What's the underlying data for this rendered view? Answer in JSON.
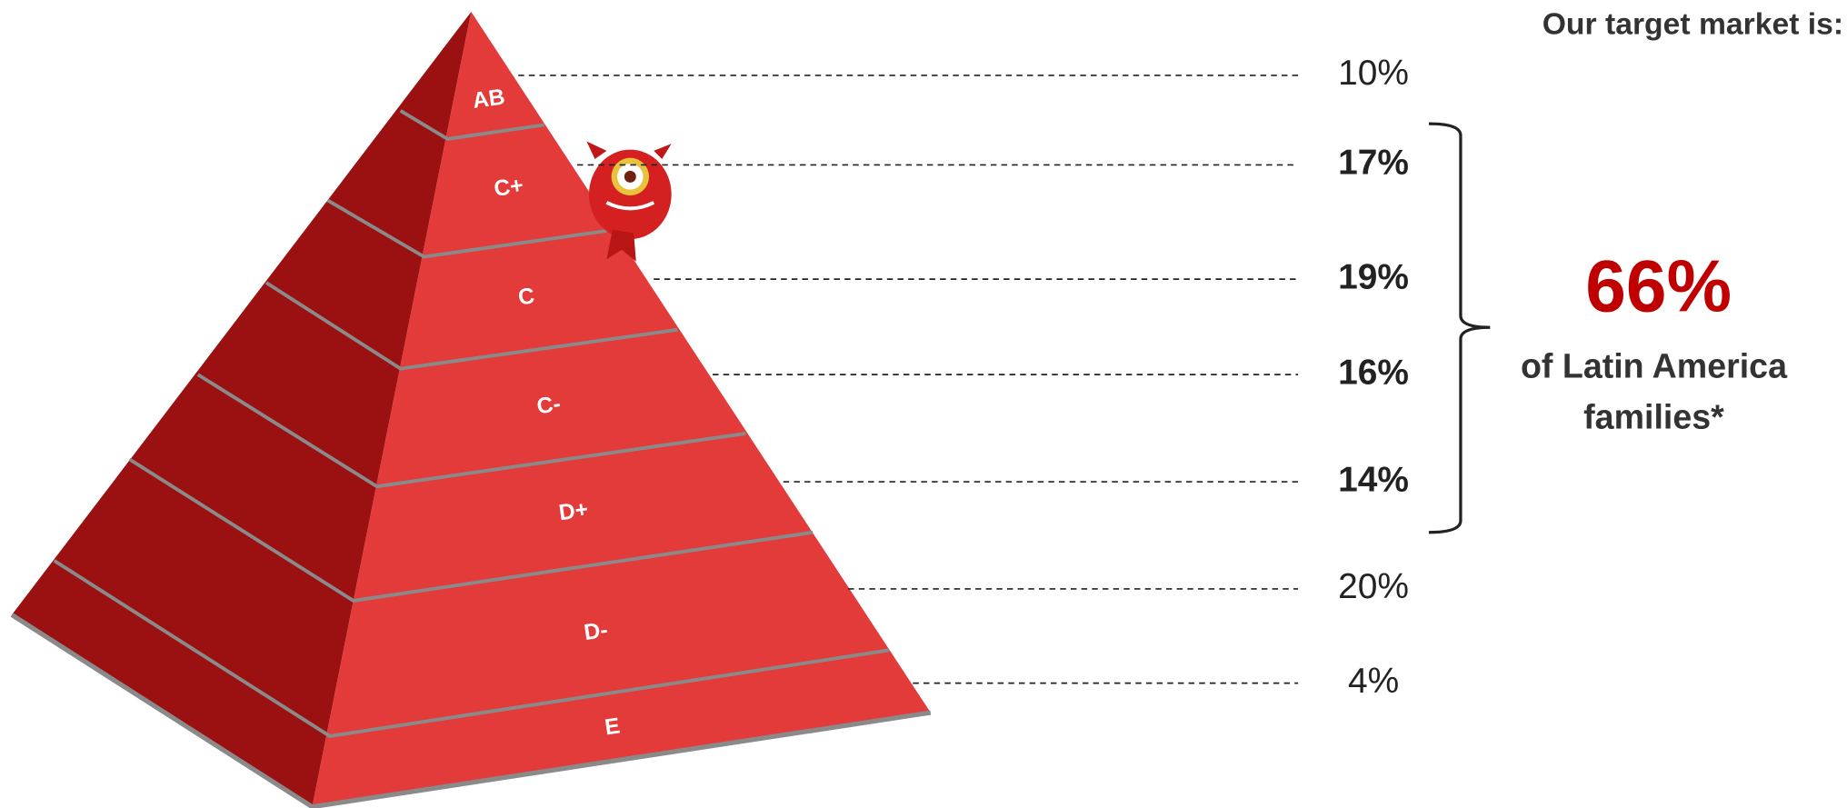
{
  "title": "Our target market is:",
  "levels": [
    {
      "label": "AB",
      "share": "10%",
      "bold": false
    },
    {
      "label": "C+",
      "share": "17%",
      "bold": true
    },
    {
      "label": "C",
      "share": "19%",
      "bold": true
    },
    {
      "label": "C-",
      "share": "16%",
      "bold": true
    },
    {
      "label": "D+",
      "share": "14%",
      "bold": true
    },
    {
      "label": "D-",
      "share": "20%",
      "bold": false
    },
    {
      "label": "E",
      "share": "4%",
      "bold": false
    }
  ],
  "highlight": "66%",
  "caption": [
    "of Latin America",
    "families*"
  ]
}
